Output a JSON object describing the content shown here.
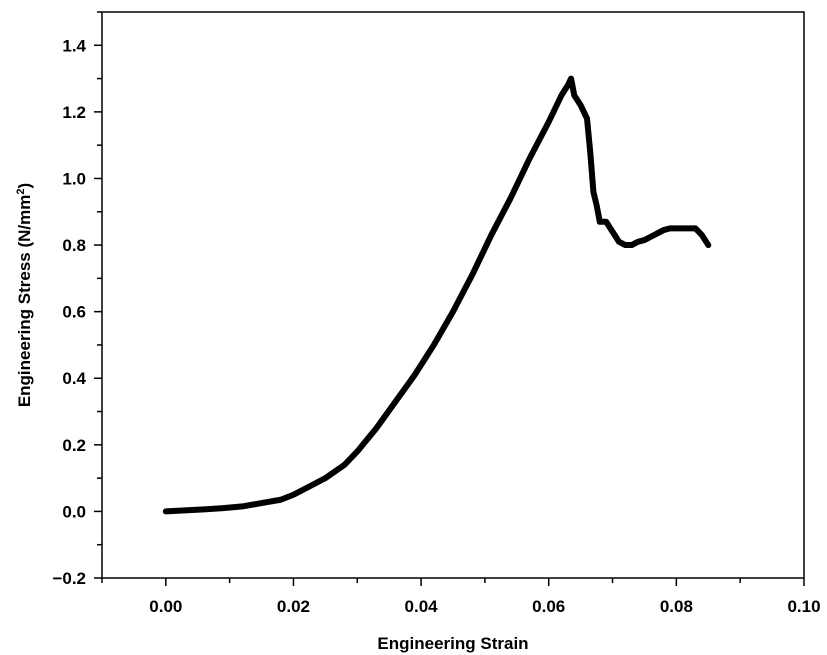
{
  "chart_data": {
    "type": "line",
    "title": "",
    "xlabel": "Engineering Strain",
    "ylabel_main": "Engineering Stress (N/mm",
    "ylabel_sup": "2",
    "ylabel_tail": ")",
    "xlim": [
      -0.01,
      0.1
    ],
    "ylim": [
      -0.2,
      1.5
    ],
    "xticks": [
      0.0,
      0.02,
      0.04,
      0.06,
      0.08,
      0.1
    ],
    "xtick_labels": [
      "0.00",
      "0.02",
      "0.04",
      "0.06",
      "0.08",
      "0.10"
    ],
    "yticks": [
      -0.2,
      0.0,
      0.2,
      0.4,
      0.6,
      0.8,
      1.0,
      1.2,
      1.4
    ],
    "ytick_labels": [
      "−0.2",
      "0.0",
      "0.2",
      "0.4",
      "0.6",
      "0.8",
      "1.0",
      "1.2",
      "1.4"
    ],
    "grid": false,
    "legend": "none",
    "colors": {
      "line": "#000000",
      "axis": "#000000"
    },
    "series": [
      {
        "x": [
          0.0,
          0.003,
          0.006,
          0.009,
          0.012,
          0.015,
          0.018,
          0.02,
          0.022,
          0.025,
          0.028,
          0.03,
          0.033,
          0.036,
          0.039,
          0.042,
          0.045,
          0.048,
          0.051,
          0.054,
          0.057,
          0.06,
          0.062,
          0.063,
          0.0635,
          0.064,
          0.065,
          0.066,
          0.0665,
          0.067,
          0.0675,
          0.068,
          0.069,
          0.07,
          0.071,
          0.072,
          0.073,
          0.074,
          0.075,
          0.076,
          0.077,
          0.078,
          0.079,
          0.08,
          0.081,
          0.082,
          0.083,
          0.084,
          0.085
        ],
        "y": [
          0.0,
          0.003,
          0.006,
          0.01,
          0.015,
          0.025,
          0.035,
          0.05,
          0.07,
          0.1,
          0.14,
          0.18,
          0.25,
          0.33,
          0.41,
          0.5,
          0.6,
          0.71,
          0.83,
          0.94,
          1.06,
          1.17,
          1.25,
          1.28,
          1.3,
          1.25,
          1.22,
          1.18,
          1.08,
          0.96,
          0.92,
          0.87,
          0.87,
          0.84,
          0.81,
          0.8,
          0.8,
          0.81,
          0.815,
          0.825,
          0.835,
          0.845,
          0.85,
          0.85,
          0.85,
          0.85,
          0.85,
          0.83,
          0.8
        ]
      }
    ]
  }
}
